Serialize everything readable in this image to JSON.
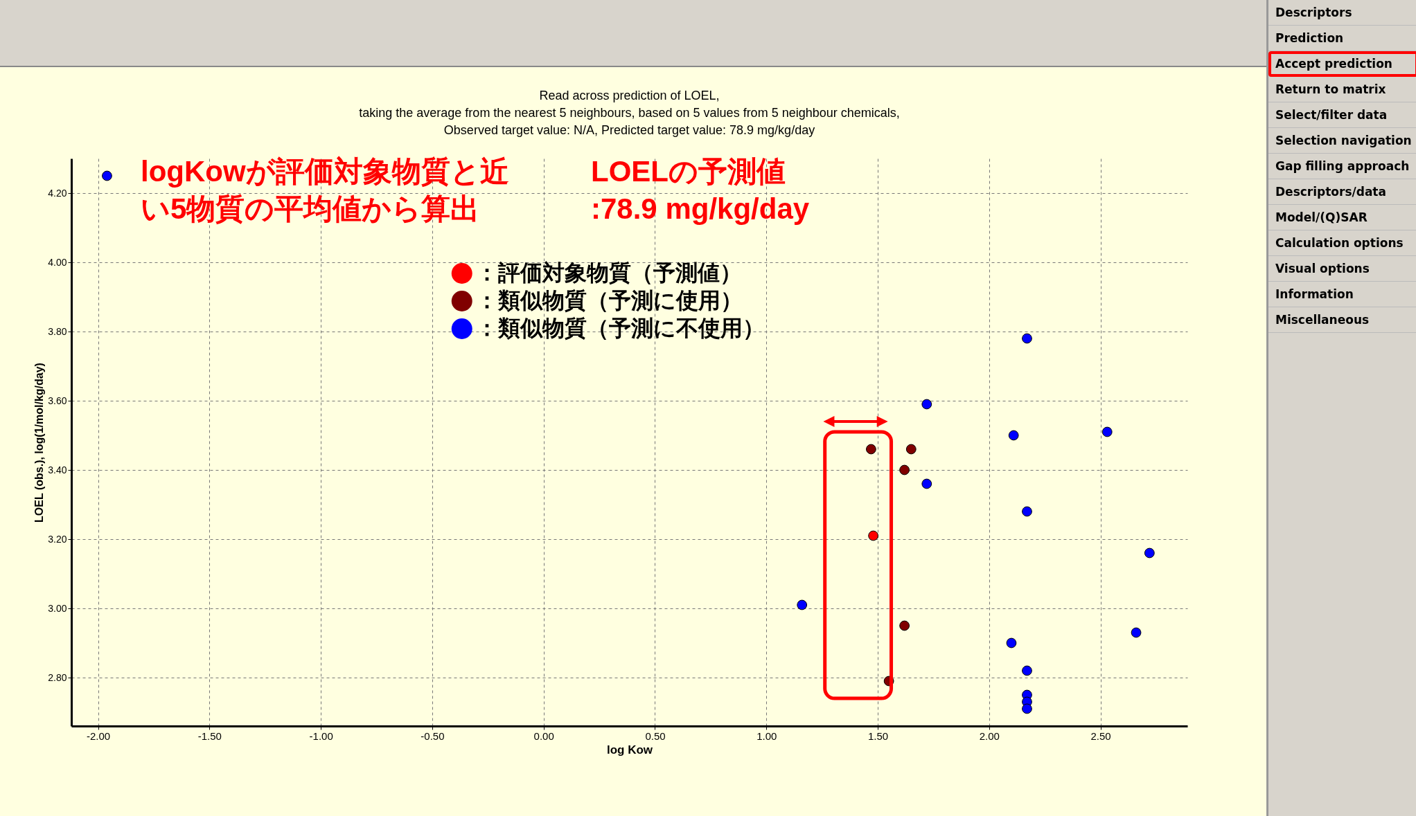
{
  "chart_data": [
    {
      "type": "scatter",
      "title": "Read across prediction of LOEL,\ntaking the average from the nearest 5 neighbours, based on 5 values from 5 neighbour chemicals,\nObserved target value: N/A, Predicted target value: 78.9 mg/kg/day",
      "xlabel": "log Kow",
      "ylabel": "LOEL (obs.), log(1/mol/kg/day)",
      "xlim": [
        -2.12,
        2.89
      ],
      "ylim": [
        2.66,
        4.3
      ],
      "xticks": [
        {
          "value": -2,
          "label": "-2.00"
        },
        {
          "value": -1.5,
          "label": "-1.50"
        },
        {
          "value": -1,
          "label": "-1.00"
        },
        {
          "value": -0.5,
          "label": "-0.50"
        },
        {
          "value": 0,
          "label": "0.00"
        },
        {
          "value": 0.5,
          "label": "0.50"
        },
        {
          "value": 1,
          "label": "1.00"
        },
        {
          "value": 1.5,
          "label": "1.50"
        },
        {
          "value": 2,
          "label": "2.00"
        },
        {
          "value": 2.5,
          "label": "2.50"
        }
      ],
      "yticks": [
        {
          "value": 2.8,
          "label": "2.80"
        },
        {
          "value": 3,
          "label": "3.00"
        },
        {
          "value": 3.2,
          "label": "3.20"
        },
        {
          "value": 3.4,
          "label": "3.40"
        },
        {
          "value": 3.6,
          "label": "3.60"
        },
        {
          "value": 3.8,
          "label": "3.80"
        },
        {
          "value": 4,
          "label": "4.00"
        },
        {
          "value": 4.2,
          "label": "4.20"
        }
      ],
      "grid": true,
      "legend": "top",
      "marker": "circle",
      "annotations": [
        "logKowが評価対象物質と近い5物質の平均値から算出",
        "LOELの予測値\n:78.9 mg/kg/day"
      ],
      "series": [
        {
          "name": "：評価対象物質（予測値）",
          "color": "#ff0000",
          "x": [
            1.48
          ],
          "values": [
            3.21
          ]
        },
        {
          "name": "：類似物質（予測に使用）",
          "color": "#800000",
          "x": [
            1.47,
            1.65,
            1.62,
            1.62,
            1.55
          ],
          "values": [
            3.46,
            3.46,
            3.4,
            2.95,
            2.79
          ]
        },
        {
          "name": "：類似物質（予測に不使用）",
          "color": "#0000ff",
          "x": [
            -1.96,
            2.17,
            1.72,
            2.11,
            2.53,
            1.72,
            2.17,
            2.72,
            1.16,
            2.66,
            2.1,
            2.17,
            2.17,
            2.17,
            2.17
          ],
          "values": [
            4.25,
            3.78,
            3.59,
            3.5,
            3.51,
            3.36,
            3.28,
            3.16,
            3.01,
            2.93,
            2.9,
            2.82,
            2.75,
            2.73,
            2.71
          ]
        }
      ]
    },
    {
      "type": "other",
      "annotations": [
        "Descriptors",
        "Prediction",
        "Accept prediction",
        "Return to matrix",
        "Select/filter data",
        "Selection navigation",
        "Gap filling approach",
        "Descriptors/data",
        "Model/(Q)SAR",
        "Calculation options",
        "Visual options",
        "Information",
        "Miscellaneous"
      ]
    }
  ]
}
